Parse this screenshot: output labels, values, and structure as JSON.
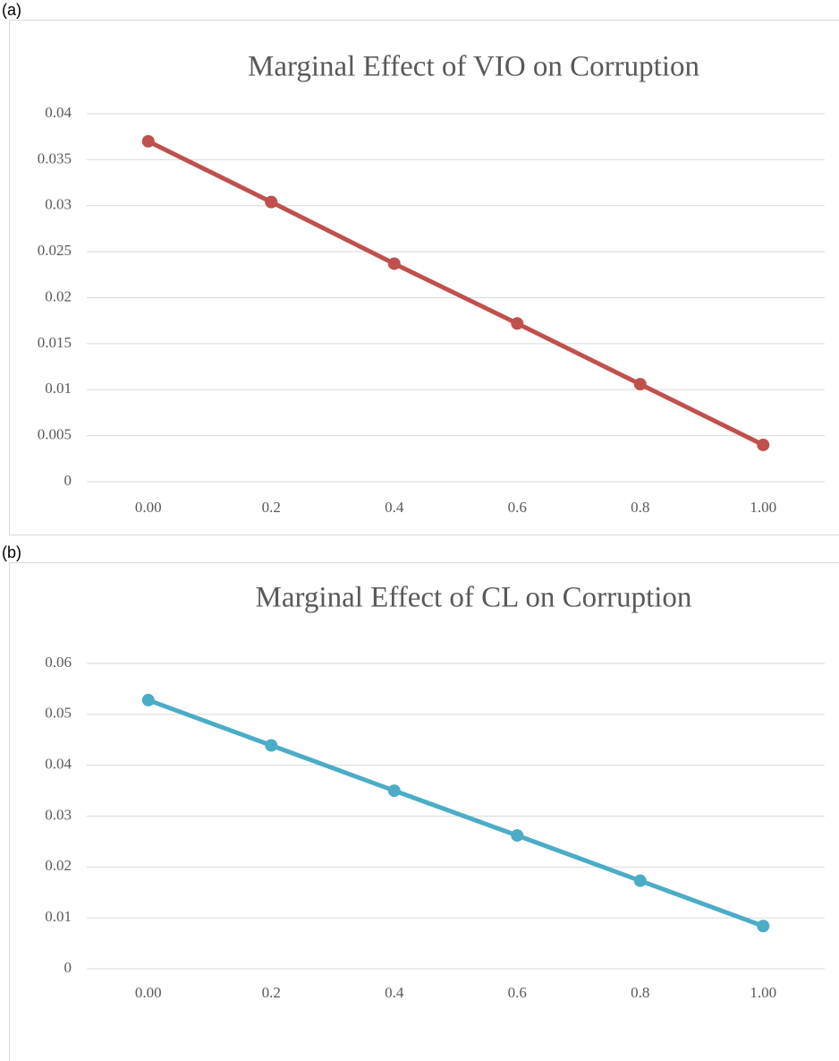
{
  "chart_data": [
    {
      "type": "line",
      "panel_label": "(a)",
      "title": "Marginal Effect of VIO on Corruption",
      "categories": [
        "0.00",
        "0.2",
        "0.4",
        "0.6",
        "0.8",
        "1.00"
      ],
      "series": [
        {
          "color": "#c0504d",
          "values": [
            0.037,
            0.0304,
            0.0237,
            0.0172,
            0.0106,
            0.004
          ]
        }
      ],
      "ylim": [
        0,
        0.04
      ],
      "yticks": [
        0,
        0.005,
        0.01,
        0.015,
        0.02,
        0.025,
        0.03,
        0.035,
        0.04
      ],
      "grid": true
    },
    {
      "type": "line",
      "panel_label": "(b)",
      "title": "Marginal Effect of CL on Corruption",
      "categories": [
        "0.00",
        "0.2",
        "0.4",
        "0.6",
        "0.8",
        "1.00"
      ],
      "series": [
        {
          "color": "#4bacc6",
          "values": [
            0.0528,
            0.0439,
            0.035,
            0.0262,
            0.0173,
            0.0084
          ]
        }
      ],
      "ylim": [
        0,
        0.06
      ],
      "yticks": [
        0,
        0.01,
        0.02,
        0.03,
        0.04,
        0.05,
        0.06
      ],
      "grid": true
    }
  ]
}
